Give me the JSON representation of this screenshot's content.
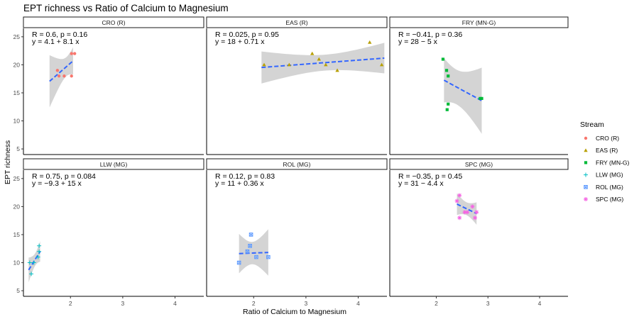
{
  "chart_data": {
    "type": "scatter",
    "title": "EPT richness vs Ratio of Calcium to Magnesium",
    "xlabel": "Ratio of Calcium to Magnesium",
    "ylabel": "EPT richness",
    "xlim": [
      1.1,
      4.55
    ],
    "ylim": [
      4.0,
      26.5
    ],
    "x_ticks": [
      2,
      3,
      4
    ],
    "y_ticks": [
      5,
      10,
      15,
      20,
      25
    ],
    "grid": false,
    "legend": {
      "title": "Stream",
      "position": "right"
    },
    "fit_color": "#3366ff",
    "band_color": "#cccccc",
    "series": [
      {
        "name": "CRO (R)",
        "color": "#f8766d",
        "shape": "circle",
        "annotation": {
          "r_text": "R = 0.6, p = 0.16",
          "eq_text": "y = 4.1 + 8.1 x"
        },
        "fit": {
          "intercept": 4.1,
          "slope": 8.1,
          "x_range": [
            1.6,
            2.05
          ]
        },
        "points": [
          [
            1.75,
            19
          ],
          [
            1.78,
            18
          ],
          [
            1.88,
            18
          ],
          [
            2.02,
            22
          ],
          [
            2.02,
            18
          ],
          [
            2.08,
            22
          ]
        ]
      },
      {
        "name": "EAS (R)",
        "color": "#b79f00",
        "shape": "triangle",
        "annotation": {
          "r_text": "R = 0.025, p = 0.95",
          "eq_text": "y = 18 + 0.71 x"
        },
        "fit": {
          "intercept": 18,
          "slope": 0.71,
          "x_range": [
            2.15,
            4.5
          ]
        },
        "points": [
          [
            2.2,
            20
          ],
          [
            2.68,
            20
          ],
          [
            3.12,
            22
          ],
          [
            3.25,
            21
          ],
          [
            3.38,
            20
          ],
          [
            3.6,
            19
          ],
          [
            4.22,
            24
          ],
          [
            4.45,
            20
          ]
        ]
      },
      {
        "name": "FRY (MN-G)",
        "color": "#00ba38",
        "shape": "square",
        "annotation": {
          "r_text": "R = −0.41, p = 0.36",
          "eq_text": "y = 28 − 5 x"
        },
        "fit": {
          "intercept": 28,
          "slope": -5,
          "x_range": [
            2.15,
            2.88
          ]
        },
        "points": [
          [
            2.13,
            21
          ],
          [
            2.2,
            19
          ],
          [
            2.23,
            18
          ],
          [
            2.23,
            13
          ],
          [
            2.21,
            12
          ],
          [
            2.85,
            14
          ],
          [
            2.88,
            14
          ]
        ]
      },
      {
        "name": "LLW (MG)",
        "color": "#00bfc4",
        "shape": "plus",
        "annotation": {
          "r_text": "R = 0.75, p = 0.084",
          "eq_text": "y = −9.3 + 15 x"
        },
        "fit": {
          "intercept": -9.3,
          "slope": 15,
          "x_range": [
            1.2,
            1.42
          ]
        },
        "points": [
          [
            1.22,
            10
          ],
          [
            1.25,
            8
          ],
          [
            1.3,
            10
          ],
          [
            1.38,
            11
          ],
          [
            1.4,
            12
          ],
          [
            1.4,
            13
          ]
        ]
      },
      {
        "name": "ROL (MG)",
        "color": "#619cff",
        "shape": "square-x",
        "annotation": {
          "r_text": "R = 0.12, p = 0.83",
          "eq_text": "y = 11 + 0.36 x"
        },
        "fit": {
          "intercept": 11,
          "slope": 0.36,
          "x_range": [
            1.72,
            2.28
          ]
        },
        "points": [
          [
            1.72,
            10
          ],
          [
            1.88,
            12
          ],
          [
            1.93,
            13
          ],
          [
            1.95,
            15
          ],
          [
            2.05,
            11
          ],
          [
            2.28,
            11
          ]
        ]
      },
      {
        "name": "SPC (MG)",
        "color": "#f564e3",
        "shape": "star",
        "annotation": {
          "r_text": "R = −0.35, p = 0.45",
          "eq_text": "y = 31 − 4.4 x"
        },
        "fit": {
          "intercept": 31,
          "slope": -4.4,
          "x_range": [
            2.4,
            2.78
          ]
        },
        "points": [
          [
            2.4,
            21
          ],
          [
            2.45,
            22
          ],
          [
            2.45,
            18
          ],
          [
            2.55,
            19
          ],
          [
            2.6,
            19
          ],
          [
            2.7,
            20
          ],
          [
            2.75,
            18
          ],
          [
            2.78,
            19
          ]
        ]
      }
    ]
  }
}
